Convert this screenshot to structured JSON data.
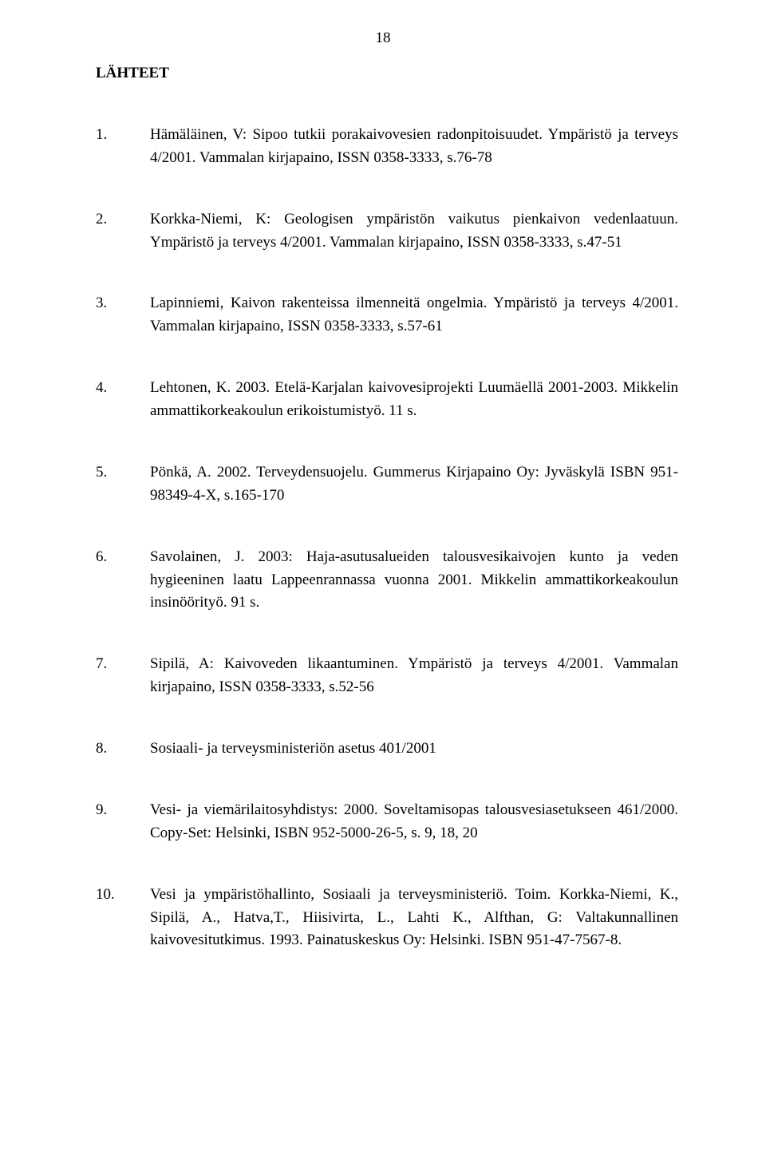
{
  "page_number": "18",
  "section_title": "LÄHTEET",
  "references": [
    {
      "num": "1.",
      "text": "Hämäläinen, V: Sipoo tutkii porakaivovesien radonpitoisuudet. Ympäristö ja terveys 4/2001. Vammalan kirjapaino, ISSN 0358-3333, s.76-78"
    },
    {
      "num": "2.",
      "text": "Korkka-Niemi, K: Geologisen ympäristön vaikutus pienkaivon vedenlaatuun. Ympäristö ja terveys 4/2001. Vammalan kirjapaino, ISSN 0358-3333, s.47-51"
    },
    {
      "num": "3.",
      "text": "Lapinniemi, Kaivon rakenteissa ilmenneitä ongelmia. Ympäristö ja terveys 4/2001. Vammalan kirjapaino, ISSN 0358-3333, s.57-61"
    },
    {
      "num": "4.",
      "text": "Lehtonen, K. 2003. Etelä-Karjalan kaivovesiprojekti Luumäellä 2001-2003. Mikkelin ammattikorkeakoulun erikoistumistyö. 11 s."
    },
    {
      "num": "5.",
      "text": "Pönkä, A. 2002. Terveydensuojelu. Gummerus Kirjapaino Oy: Jyväskylä ISBN 951-98349-4-X, s.165-170"
    },
    {
      "num": "6.",
      "text": "Savolainen, J. 2003: Haja-asutusalueiden talousvesikaivojen kunto ja veden hygieeninen laatu Lappeenrannassa vuonna 2001. Mikkelin ammattikorkeakoulun insinöörityö. 91 s."
    },
    {
      "num": "7.",
      "text": "Sipilä, A: Kaivoveden likaantuminen. Ympäristö ja terveys 4/2001. Vammalan kirjapaino, ISSN 0358-3333, s.52-56"
    },
    {
      "num": "8.",
      "text": "Sosiaali- ja terveysministeriön asetus 401/2001"
    },
    {
      "num": "9.",
      "text": "Vesi- ja viemärilaitosyhdistys: 2000. Soveltamisopas talousvesiasetukseen 461/2000. Copy-Set: Helsinki, ISBN 952-5000-26-5, s. 9, 18, 20"
    },
    {
      "num": "10.",
      "text": "Vesi ja ympäristöhallinto, Sosiaali ja terveysministeriö. Toim. Korkka-Niemi, K., Sipilä, A., Hatva,T., Hiisivirta, L., Lahti K., Alfthan, G: Valtakunnallinen kaivovesitutkimus. 1993. Painatuskeskus Oy: Helsinki. ISBN 951-47-7567-8."
    }
  ]
}
